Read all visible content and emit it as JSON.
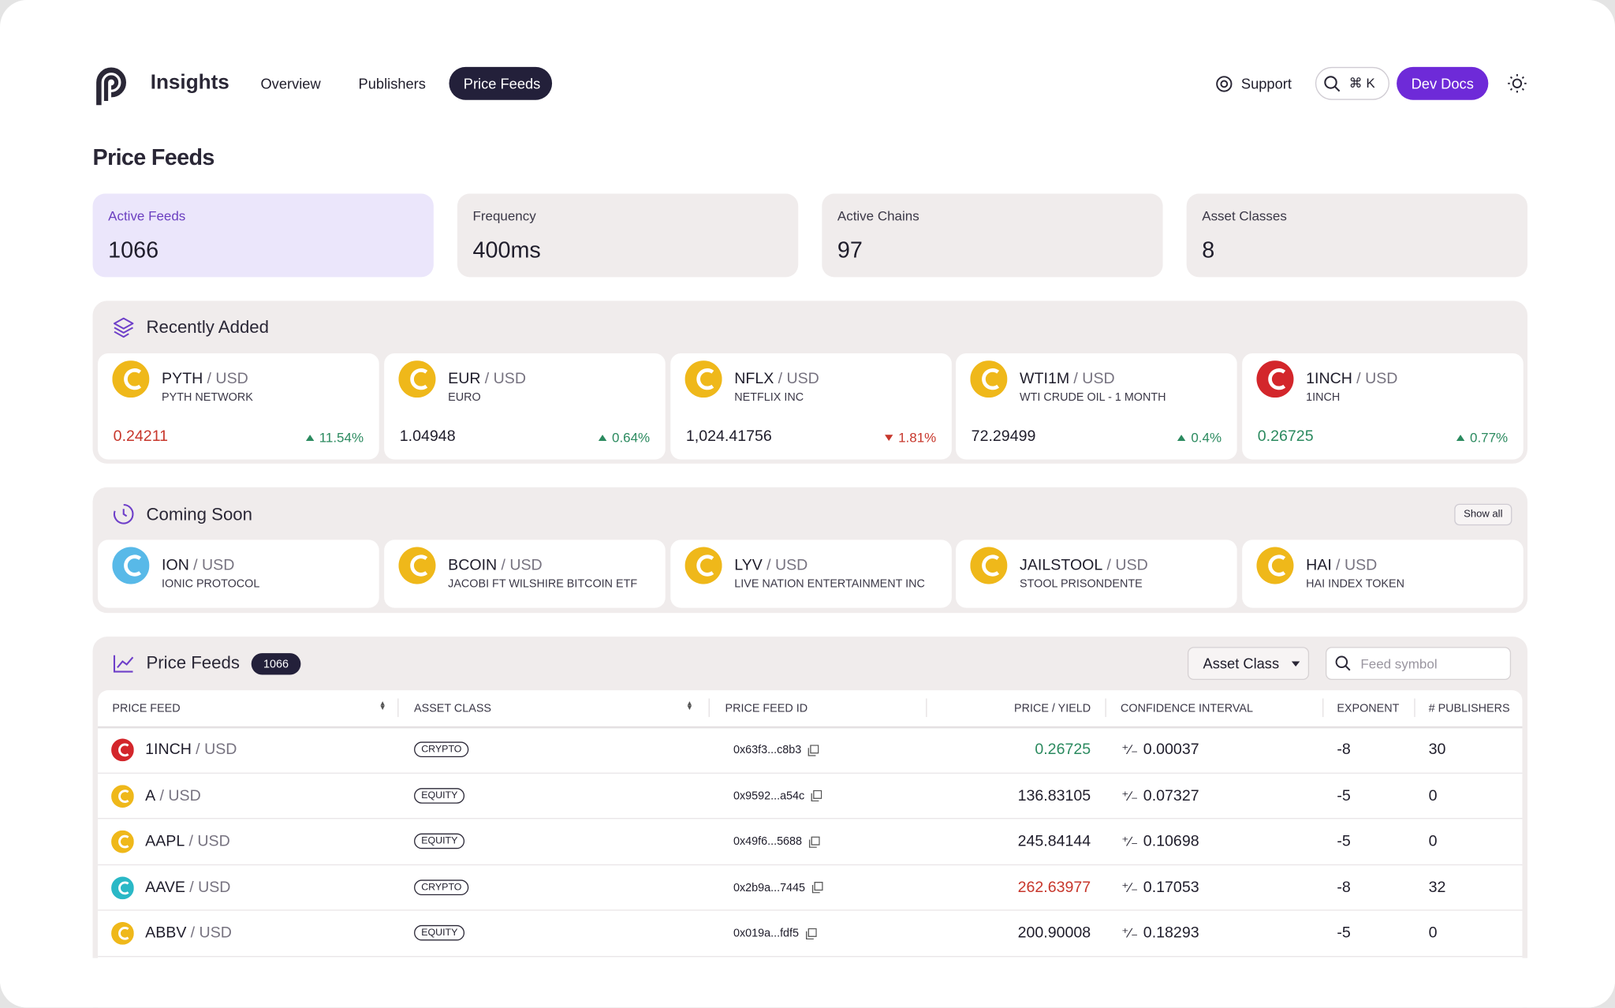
{
  "nav": {
    "brand": "Insights",
    "links": [
      "Overview",
      "Publishers",
      "Price Feeds"
    ],
    "active": 2,
    "support": "Support",
    "search": "⌘ K",
    "docs": "Dev Docs"
  },
  "page_title": "Price Feeds",
  "stats": [
    {
      "label": "Active Feeds",
      "value": 1066
    },
    {
      "label": "Frequency",
      "value": "400ms"
    },
    {
      "label": "Active Chains",
      "value": 97
    },
    {
      "label": "Asset Classes",
      "value": 8
    }
  ],
  "recently_added": {
    "title": "Recently Added",
    "items": [
      {
        "symbol": "PYTH",
        "quote": "/ USD",
        "name": "PYTH NETWORK",
        "price": "0.24211",
        "price_color": "#c7362b",
        "change": "11.54%",
        "direction": "up",
        "icon_color": "#efb81a"
      },
      {
        "symbol": "EUR",
        "quote": "/ USD",
        "name": "EURO",
        "price": "1.04948",
        "price_color": "#1f1d2b",
        "change": "0.64%",
        "direction": "up",
        "icon_color": "#efb81a"
      },
      {
        "symbol": "NFLX",
        "quote": "/ USD",
        "name": "NETFLIX INC",
        "price": "1,024.41756",
        "price_color": "#1f1d2b",
        "change": "1.81%",
        "direction": "down",
        "icon_color": "#efb81a"
      },
      {
        "symbol": "WTI1M",
        "quote": "/ USD",
        "name": "WTI CRUDE OIL - 1 MONTH",
        "price": "72.29499",
        "price_color": "#1f1d2b",
        "change": "0.4%",
        "direction": "up",
        "icon_color": "#efb81a"
      },
      {
        "symbol": "1INCH",
        "quote": "/ USD",
        "name": "1INCH",
        "price": "0.26725",
        "price_color": "#2b8a5f",
        "change": "0.77%",
        "direction": "up",
        "icon_color": "#d3262b"
      }
    ]
  },
  "coming_soon": {
    "title": "Coming Soon",
    "show_all": "Show all",
    "items": [
      {
        "symbol": "ION",
        "quote": "/ USD",
        "name": "IONIC PROTOCOL",
        "icon_color": "#58b9e8"
      },
      {
        "symbol": "BCOIN",
        "quote": "/ USD",
        "name": "JACOBI FT WILSHIRE BITCOIN ETF",
        "icon_color": "#efb81a"
      },
      {
        "symbol": "LYV",
        "quote": "/ USD",
        "name": "LIVE NATION ENTERTAINMENT INC",
        "icon_color": "#efb81a"
      },
      {
        "symbol": "JAILSTOOL",
        "quote": "/ USD",
        "name": "STOOL PRISONDENTE",
        "icon_color": "#efb81a"
      },
      {
        "symbol": "HAI",
        "quote": "/ USD",
        "name": "HAI INDEX TOKEN",
        "icon_color": "#efb81a"
      }
    ]
  },
  "table": {
    "title": "Price Feeds",
    "count": 1066,
    "filter": "Asset Class",
    "search_placeholder": "Feed symbol",
    "columns": [
      "PRICE FEED",
      "ASSET CLASS",
      "PRICE FEED ID",
      "PRICE / YIELD",
      "CONFIDENCE INTERVAL",
      "EXPONENT",
      "# PUBLISHERS"
    ],
    "rows": [
      {
        "symbol": "1INCH",
        "quote": "/ USD",
        "asset_class": "CRYPTO",
        "id": "0x63f3...c8b3",
        "price": "0.26725",
        "price_color": "#2b8a5f",
        "confidence": "0.00037",
        "exponent": -8,
        "publishers": 30,
        "icon_color": "#d3262b"
      },
      {
        "symbol": "A",
        "quote": "/ USD",
        "asset_class": "EQUITY",
        "id": "0x9592...a54c",
        "price": "136.83105",
        "price_color": "#1f1d2b",
        "confidence": "0.07327",
        "exponent": -5,
        "publishers": 0,
        "icon_color": "#efb81a"
      },
      {
        "symbol": "AAPL",
        "quote": "/ USD",
        "asset_class": "EQUITY",
        "id": "0x49f6...5688",
        "price": "245.84144",
        "price_color": "#1f1d2b",
        "confidence": "0.10698",
        "exponent": -5,
        "publishers": 0,
        "icon_color": "#efb81a"
      },
      {
        "symbol": "AAVE",
        "quote": "/ USD",
        "asset_class": "CRYPTO",
        "id": "0x2b9a...7445",
        "price": "262.63977",
        "price_color": "#c7362b",
        "confidence": "0.17053",
        "exponent": -8,
        "publishers": 32,
        "icon_color": "#2ab8c6"
      },
      {
        "symbol": "ABBV",
        "quote": "/ USD",
        "asset_class": "EQUITY",
        "id": "0x019a...fdf5",
        "price": "200.90008",
        "price_color": "#1f1d2b",
        "confidence": "0.18293",
        "exponent": -5,
        "publishers": 0,
        "icon_color": "#efb81a"
      }
    ]
  }
}
